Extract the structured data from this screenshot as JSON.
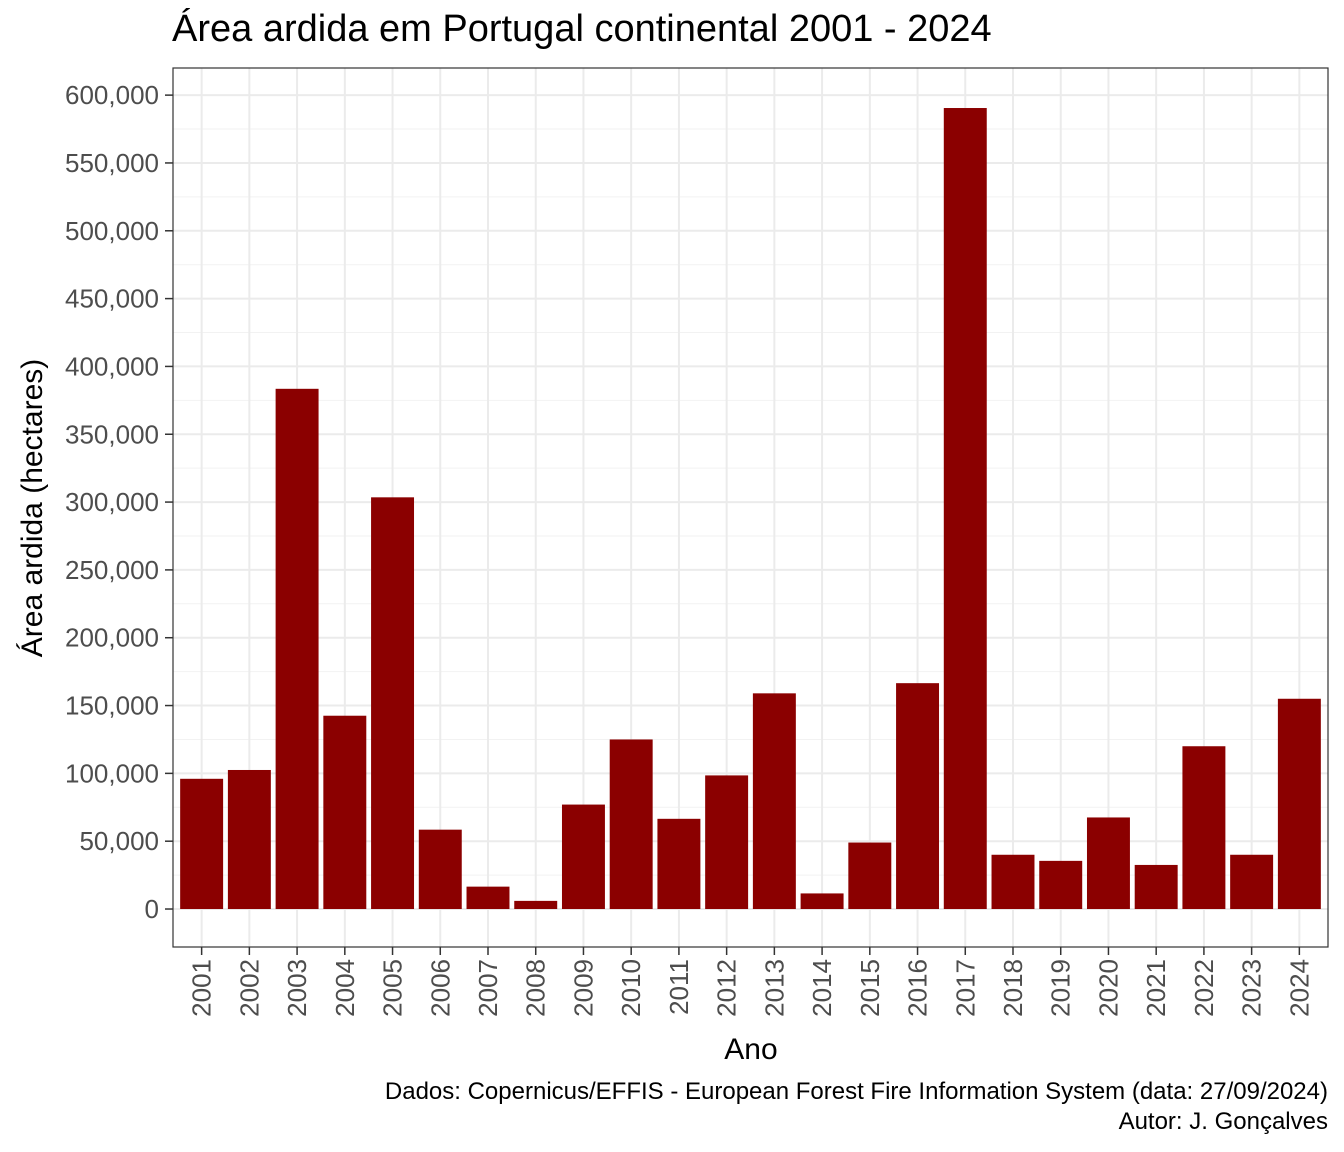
{
  "chart_data": {
    "type": "bar",
    "title": "Área ardida em Portugal continental 2001 - 2024",
    "xlabel": "Ano",
    "ylabel": "Área ardida (hectares)",
    "categories": [
      "2001",
      "2002",
      "2003",
      "2004",
      "2005",
      "2006",
      "2007",
      "2008",
      "2009",
      "2010",
      "2011",
      "2012",
      "2013",
      "2014",
      "2015",
      "2016",
      "2017",
      "2018",
      "2019",
      "2020",
      "2021",
      "2022",
      "2023",
      "2024"
    ],
    "values": [
      96000,
      102500,
      383500,
      142500,
      303500,
      58500,
      16500,
      6000,
      77000,
      125000,
      66500,
      98500,
      159000,
      11500,
      49000,
      166500,
      590500,
      40000,
      35500,
      67500,
      32500,
      120000,
      40000,
      155000
    ],
    "ylim": [
      -28000,
      620000
    ],
    "yticks": [
      0,
      50000,
      100000,
      150000,
      200000,
      250000,
      300000,
      350000,
      400000,
      450000,
      500000,
      550000,
      600000
    ],
    "ytick_labels": [
      "0",
      "50,000",
      "100,000",
      "150,000",
      "200,000",
      "250,000",
      "300,000",
      "350,000",
      "400,000",
      "450,000",
      "500,000",
      "550,000",
      "600,000"
    ],
    "bar_color": "#8B0000",
    "grid": true,
    "caption": {
      "line1": "Dados: Copernicus/EFFIS - European Forest Fire Information System (data: 27/09/2024)",
      "line2": "Autor: J. Gonçalves"
    }
  }
}
